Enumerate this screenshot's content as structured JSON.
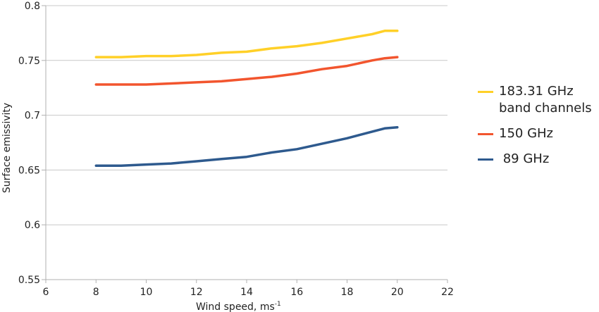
{
  "chart_data": {
    "type": "line",
    "title": "",
    "xlabel": "Wind speed, ms",
    "xlabel_superscript": "-1",
    "ylabel": "Surface emissivity",
    "xlim": [
      6,
      22
    ],
    "ylim": [
      0.55,
      0.8
    ],
    "x_ticks": [
      "6",
      "8",
      "10",
      "12",
      "14",
      "16",
      "18",
      "20",
      "22"
    ],
    "y_ticks": [
      "0.55",
      "0.6",
      "0.65",
      "0.7",
      "0.75",
      "0.8"
    ],
    "grid": "horizontal",
    "legend_position": "right",
    "x": [
      8,
      9,
      10,
      11,
      12,
      13,
      14,
      15,
      16,
      17,
      18,
      19,
      19.5,
      20
    ],
    "series": [
      {
        "name": "183.31 GHz\nband channels",
        "color": "#FFD028",
        "values": [
          0.753,
          0.753,
          0.754,
          0.754,
          0.755,
          0.757,
          0.758,
          0.761,
          0.763,
          0.766,
          0.77,
          0.774,
          0.777,
          0.777
        ]
      },
      {
        "name": "150 GHz",
        "color": "#F2552E",
        "values": [
          0.728,
          0.728,
          0.728,
          0.729,
          0.73,
          0.731,
          0.733,
          0.735,
          0.738,
          0.742,
          0.745,
          0.75,
          0.752,
          0.753
        ]
      },
      {
        "name": " 89 GHz",
        "color": "#2E5A8E",
        "values": [
          0.654,
          0.654,
          0.655,
          0.656,
          0.658,
          0.66,
          0.662,
          0.666,
          0.669,
          0.674,
          0.679,
          0.685,
          0.688,
          0.689
        ]
      }
    ]
  }
}
